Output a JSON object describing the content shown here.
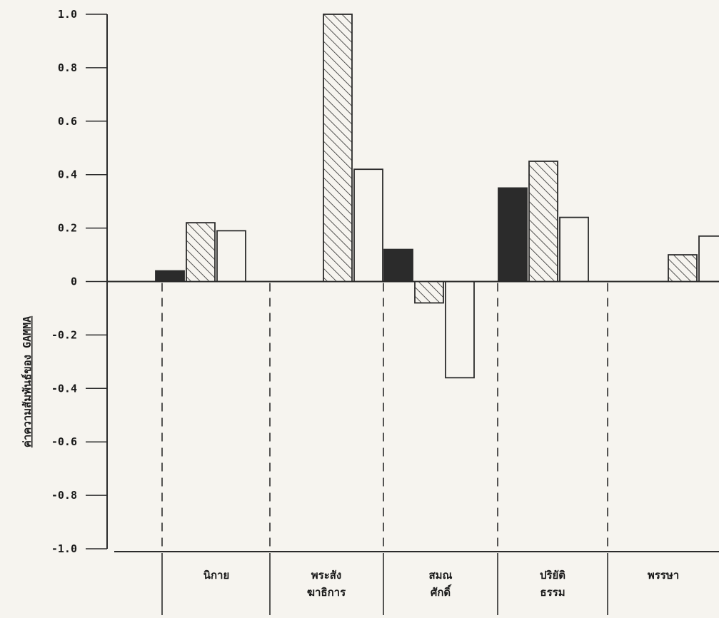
{
  "chart_data": {
    "type": "bar",
    "title": "",
    "xlabel": "",
    "ylabel": "ค่าความสัมพันธ์ของ GAMMA",
    "ylim": [
      -1.0,
      1.0
    ],
    "y_ticks": [
      "1.0",
      "0.8",
      "0.6",
      "0.4",
      "0.2",
      "0",
      "-0.2",
      "-0.4",
      "-0.6",
      "-0.8",
      "-1.0"
    ],
    "y_tick_values": [
      1.0,
      0.8,
      0.6,
      0.4,
      0.2,
      0,
      -0.2,
      -0.4,
      -0.6,
      -0.8,
      -1.0
    ],
    "categories": [
      {
        "label": "นิกาย",
        "lines": [
          "นิกาย"
        ]
      },
      {
        "label": "พระสังฆาธิการ",
        "lines": [
          "พระสัง",
          "ฆาธิการ"
        ]
      },
      {
        "label": "สมณศักดิ์",
        "lines": [
          "สมณ",
          "ศักดิ์"
        ]
      },
      {
        "label": "ปริยัติธรรม",
        "lines": [
          "ปริยัติ",
          "ธรรม"
        ]
      },
      {
        "label": "พรรษา",
        "lines": [
          "พรรษา"
        ]
      }
    ],
    "series": [
      {
        "pattern": "solid",
        "color": "#2b2b2b",
        "values": [
          0.04,
          null,
          0.12,
          0.35,
          null
        ]
      },
      {
        "pattern": "hatched",
        "color": "#2b2b2b",
        "values": [
          0.22,
          1.0,
          -0.08,
          0.45,
          0.1
        ]
      },
      {
        "pattern": "outline",
        "color": "#2b2b2b",
        "values": [
          0.19,
          0.42,
          -0.36,
          0.24,
          0.17
        ]
      }
    ],
    "grid": false,
    "legend": "none"
  }
}
